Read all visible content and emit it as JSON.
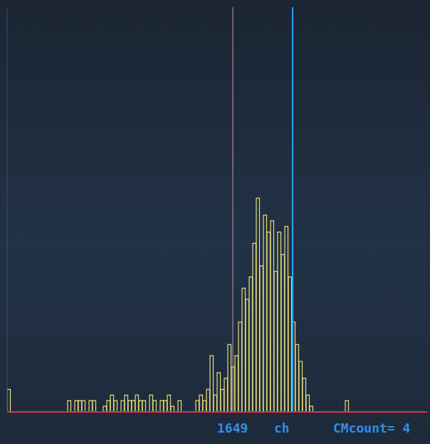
{
  "chart_data": {
    "type": "histogram",
    "bins": [
      0,
      1,
      2,
      3,
      4,
      5,
      6,
      7,
      8,
      9,
      10,
      11,
      12,
      13,
      14,
      15,
      16,
      17,
      18,
      19,
      20,
      21,
      22,
      23,
      24,
      25,
      26,
      27,
      28,
      29,
      30,
      31,
      32,
      33,
      34,
      35,
      36,
      37,
      38,
      39,
      40,
      41,
      42,
      43,
      44,
      45,
      46,
      47,
      48,
      49,
      50,
      51,
      52,
      53,
      54,
      55,
      56,
      57,
      58,
      59,
      60,
      61,
      62,
      63,
      64,
      65,
      66,
      67,
      68,
      69,
      70,
      71,
      72,
      73,
      74,
      75,
      76,
      77,
      78,
      79,
      80,
      81,
      82,
      83,
      84,
      85,
      86,
      87,
      88,
      89,
      90,
      91,
      92,
      93,
      94,
      95,
      96,
      97,
      98,
      99,
      100,
      101,
      102,
      103,
      104,
      105,
      106,
      107,
      108,
      109,
      110,
      111,
      112,
      113,
      114,
      115,
      116,
      117,
      118
    ],
    "values": [
      4,
      0,
      0,
      0,
      0,
      0,
      0,
      0,
      0,
      0,
      0,
      0,
      0,
      0,
      0,
      0,
      0,
      2,
      0,
      2,
      2,
      2,
      0,
      2,
      2,
      0,
      0,
      1,
      2,
      3,
      2,
      0,
      2,
      3,
      2,
      2,
      3,
      2,
      2,
      0,
      3,
      2,
      0,
      2,
      2,
      3,
      1,
      0,
      2,
      0,
      0,
      0,
      0,
      2,
      3,
      2,
      4,
      10,
      3,
      7,
      4,
      6,
      12,
      8,
      10,
      16,
      22,
      20,
      24,
      30,
      38,
      26,
      35,
      32,
      34,
      25,
      32,
      28,
      33,
      24,
      16,
      12,
      9,
      6,
      3,
      1,
      0,
      0,
      0,
      0,
      0,
      0,
      0,
      0,
      0,
      2,
      0,
      0,
      0,
      0,
      0,
      0,
      0,
      0,
      0,
      0,
      0,
      0,
      0,
      0,
      0,
      0,
      0,
      0,
      0,
      0,
      0,
      0
    ],
    "color": "#e6dc7a",
    "xlim": [
      0,
      118
    ],
    "ylim": [
      0,
      72
    ],
    "tick_labels": false,
    "grid": false,
    "cursors": [
      {
        "value": 63.4,
        "color": "#c79aa8"
      },
      {
        "value": 80.2,
        "color": "#2aa6ea"
      }
    ],
    "annotations": [
      "1649",
      "ch",
      "CMcount= 4"
    ]
  }
}
